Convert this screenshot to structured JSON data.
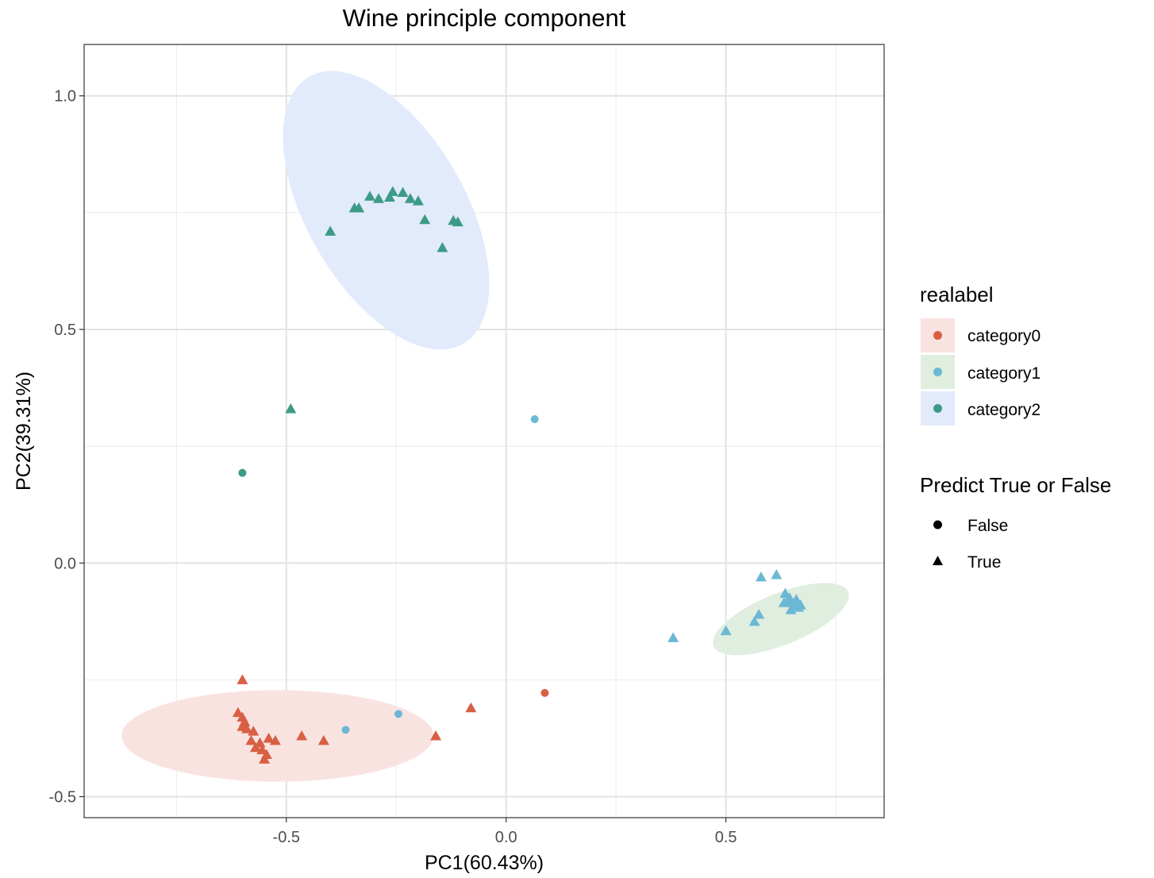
{
  "chart_data": {
    "type": "scatter",
    "title": "Wine principle component",
    "xlabel": "PC1(60.43%)",
    "ylabel": "PC2(39.31%)",
    "xlim": [
      -0.96,
      0.86
    ],
    "ylim": [
      -0.545,
      1.11
    ],
    "x_ticks": [
      -0.5,
      0.0,
      0.5
    ],
    "x_tick_labels": [
      "-0.5",
      "0.0",
      "0.5"
    ],
    "y_ticks": [
      -0.5,
      0.0,
      0.5,
      1.0
    ],
    "y_tick_labels": [
      "-0.5",
      "0.0",
      "0.5",
      "1.0"
    ],
    "grid": true,
    "legend_position": "right",
    "color_legend": {
      "title": "realabel",
      "items": [
        {
          "label": "category0",
          "color": "#d95f43",
          "fill": "#f9e3e1"
        },
        {
          "label": "category1",
          "color": "#6bb8d4",
          "fill": "#e0eedf"
        },
        {
          "label": "category2",
          "color": "#3d9a87",
          "fill": "#e2ebfb"
        }
      ]
    },
    "shape_legend": {
      "title": "Predict True or False",
      "items": [
        {
          "label": "False",
          "shape": "circle"
        },
        {
          "label": "True",
          "shape": "triangle"
        }
      ]
    },
    "ellipses": [
      {
        "category": "category0",
        "cx": -0.52,
        "cy": -0.37,
        "rx": 0.355,
        "ry": 0.098,
        "angle": 0
      },
      {
        "category": "category1",
        "cx": 0.625,
        "cy": -0.12,
        "rx": 0.165,
        "ry": 0.055,
        "angle": 22
      },
      {
        "category": "category2",
        "cx": -0.273,
        "cy": 0.755,
        "rx": 0.18,
        "ry": 0.33,
        "angle": 30
      }
    ],
    "series": [
      {
        "name": "category0",
        "points": [
          {
            "x": -0.6,
            "y": -0.25,
            "pred": "True"
          },
          {
            "x": -0.61,
            "y": -0.32,
            "pred": "True"
          },
          {
            "x": -0.6,
            "y": -0.33,
            "pred": "True"
          },
          {
            "x": -0.595,
            "y": -0.34,
            "pred": "True"
          },
          {
            "x": -0.6,
            "y": -0.35,
            "pred": "True"
          },
          {
            "x": -0.59,
            "y": -0.355,
            "pred": "True"
          },
          {
            "x": -0.575,
            "y": -0.36,
            "pred": "True"
          },
          {
            "x": -0.58,
            "y": -0.38,
            "pred": "True"
          },
          {
            "x": -0.56,
            "y": -0.385,
            "pred": "True"
          },
          {
            "x": -0.57,
            "y": -0.395,
            "pred": "True"
          },
          {
            "x": -0.555,
            "y": -0.4,
            "pred": "True"
          },
          {
            "x": -0.545,
            "y": -0.41,
            "pred": "True"
          },
          {
            "x": -0.55,
            "y": -0.42,
            "pred": "True"
          },
          {
            "x": -0.54,
            "y": -0.375,
            "pred": "True"
          },
          {
            "x": -0.525,
            "y": -0.38,
            "pred": "True"
          },
          {
            "x": -0.465,
            "y": -0.37,
            "pred": "True"
          },
          {
            "x": -0.415,
            "y": -0.38,
            "pred": "True"
          },
          {
            "x": -0.16,
            "y": -0.37,
            "pred": "True"
          },
          {
            "x": -0.08,
            "y": -0.31,
            "pred": "True"
          },
          {
            "x": 0.088,
            "y": -0.278,
            "pred": "False"
          }
        ]
      },
      {
        "name": "category1",
        "points": [
          {
            "x": 0.065,
            "y": 0.308,
            "pred": "False"
          },
          {
            "x": -0.365,
            "y": -0.357,
            "pred": "False"
          },
          {
            "x": -0.245,
            "y": -0.323,
            "pred": "False"
          },
          {
            "x": 0.38,
            "y": -0.16,
            "pred": "True"
          },
          {
            "x": 0.5,
            "y": -0.145,
            "pred": "True"
          },
          {
            "x": 0.565,
            "y": -0.125,
            "pred": "True"
          },
          {
            "x": 0.575,
            "y": -0.11,
            "pred": "True"
          },
          {
            "x": 0.58,
            "y": -0.03,
            "pred": "True"
          },
          {
            "x": 0.615,
            "y": -0.025,
            "pred": "True"
          },
          {
            "x": 0.635,
            "y": -0.065,
            "pred": "True"
          },
          {
            "x": 0.64,
            "y": -0.08,
            "pred": "True"
          },
          {
            "x": 0.645,
            "y": -0.075,
            "pred": "True"
          },
          {
            "x": 0.65,
            "y": -0.085,
            "pred": "True"
          },
          {
            "x": 0.655,
            "y": -0.09,
            "pred": "True"
          },
          {
            "x": 0.66,
            "y": -0.078,
            "pred": "True"
          },
          {
            "x": 0.665,
            "y": -0.095,
            "pred": "True"
          },
          {
            "x": 0.67,
            "y": -0.09,
            "pred": "True"
          },
          {
            "x": 0.648,
            "y": -0.1,
            "pred": "True"
          },
          {
            "x": 0.632,
            "y": -0.085,
            "pred": "True"
          }
        ]
      },
      {
        "name": "category2",
        "points": [
          {
            "x": -0.4,
            "y": 0.71,
            "pred": "True"
          },
          {
            "x": -0.345,
            "y": 0.76,
            "pred": "True"
          },
          {
            "x": -0.335,
            "y": 0.76,
            "pred": "True"
          },
          {
            "x": -0.31,
            "y": 0.785,
            "pred": "True"
          },
          {
            "x": -0.29,
            "y": 0.78,
            "pred": "True"
          },
          {
            "x": -0.265,
            "y": 0.783,
            "pred": "True"
          },
          {
            "x": -0.258,
            "y": 0.795,
            "pred": "True"
          },
          {
            "x": -0.235,
            "y": 0.793,
            "pred": "True"
          },
          {
            "x": -0.218,
            "y": 0.78,
            "pred": "True"
          },
          {
            "x": -0.2,
            "y": 0.775,
            "pred": "True"
          },
          {
            "x": -0.185,
            "y": 0.735,
            "pred": "True"
          },
          {
            "x": -0.12,
            "y": 0.733,
            "pred": "True"
          },
          {
            "x": -0.11,
            "y": 0.73,
            "pred": "True"
          },
          {
            "x": -0.145,
            "y": 0.675,
            "pred": "True"
          },
          {
            "x": -0.49,
            "y": 0.33,
            "pred": "True"
          },
          {
            "x": -0.6,
            "y": 0.193,
            "pred": "False"
          }
        ]
      }
    ]
  }
}
